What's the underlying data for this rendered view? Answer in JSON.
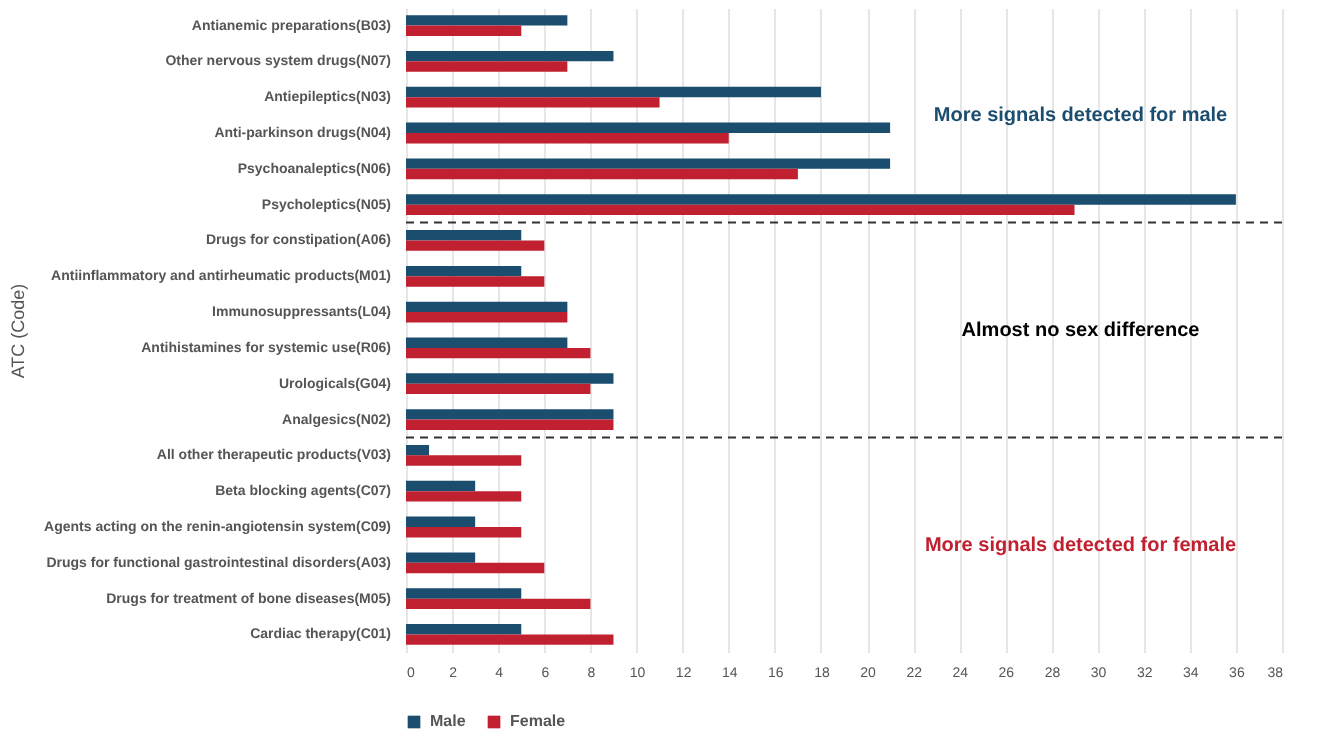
{
  "chart_data": {
    "type": "bar",
    "orientation": "horizontal",
    "ylabel": "ATC (Code)",
    "categories": [
      "Antianemic preparations(B03)",
      "Other nervous system drugs(N07)",
      "Antiepileptics(N03)",
      "Anti-parkinson drugs(N04)",
      "Psychoanaleptics(N06)",
      "Psycholeptics(N05)",
      "Drugs for constipation(A06)",
      "Antiinflammatory and antirheumatic products(M01)",
      "Immunosuppressants(L04)",
      "Antihistamines for systemic use(R06)",
      "Urologicals(G04)",
      "Analgesics(N02)",
      "All other therapeutic products(V03)",
      "Beta blocking agents(C07)",
      "Agents acting on the renin-angiotensin system(C09)",
      "Drugs for functional gastrointestinal disorders(A03)",
      "Drugs for treatment of bone diseases(M05)",
      "Cardiac therapy(C01)"
    ],
    "series": [
      {
        "name": "Male",
        "color": "#1a4d6e",
        "values": [
          7,
          9,
          18,
          21,
          21,
          36,
          5,
          5,
          7,
          7,
          9,
          9,
          1,
          3,
          3,
          3,
          5,
          5
        ]
      },
      {
        "name": "Female",
        "color": "#c0202f",
        "values": [
          5,
          7,
          11,
          14,
          17,
          29,
          6,
          6,
          7,
          8,
          8,
          9,
          5,
          5,
          5,
          6,
          8,
          9
        ]
      }
    ],
    "xlim": [
      0,
      38
    ],
    "xticks": [
      0,
      2,
      4,
      6,
      8,
      10,
      12,
      14,
      16,
      18,
      20,
      22,
      24,
      26,
      28,
      30,
      32,
      34,
      36,
      38
    ],
    "grid": "x",
    "legend": "bottom",
    "annotations": [
      "More signals detected for male",
      "Almost no sex difference",
      "More signals detected for female"
    ]
  }
}
